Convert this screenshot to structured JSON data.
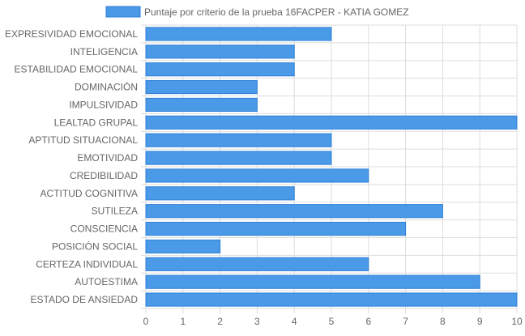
{
  "chart_data": {
    "type": "bar",
    "orientation": "horizontal",
    "categories": [
      "EXPRESIVIDAD EMOCIONAL",
      "INTELIGENCIA",
      "ESTABILIDAD EMOCIONAL",
      "DOMINACIÓN",
      "IMPULSIVIDAD",
      "LEALTAD GRUPAL",
      "APTITUD SITUACIONAL",
      "EMOTIVIDAD",
      "CREDIBILIDAD",
      "ACTITUD COGNITIVA",
      "SUTILEZA",
      "CONSCIENCIA",
      "POSICIÓN SOCIAL",
      "CERTEZA INDIVIDUAL",
      "AUTOESTIMA",
      "ESTADO DE ANSIEDAD"
    ],
    "series": [
      {
        "name": "Puntaje por criterio de la prueba 16FACPER - KATIA GOMEZ",
        "values": [
          5,
          4,
          4,
          3,
          3,
          10,
          5,
          5,
          6,
          4,
          8,
          7,
          2,
          6,
          9,
          10
        ],
        "color": "#4a9ae8",
        "border_color": "#2f7fd9"
      }
    ],
    "xlim": [
      0,
      10
    ],
    "x_ticks": [
      "0",
      "1",
      "2",
      "3",
      "4",
      "5",
      "6",
      "7",
      "8",
      "9",
      "10"
    ],
    "grid": true,
    "grid_color": "#dddddd",
    "legend_position": "top-center",
    "title": "",
    "xlabel": "",
    "ylabel": ""
  }
}
